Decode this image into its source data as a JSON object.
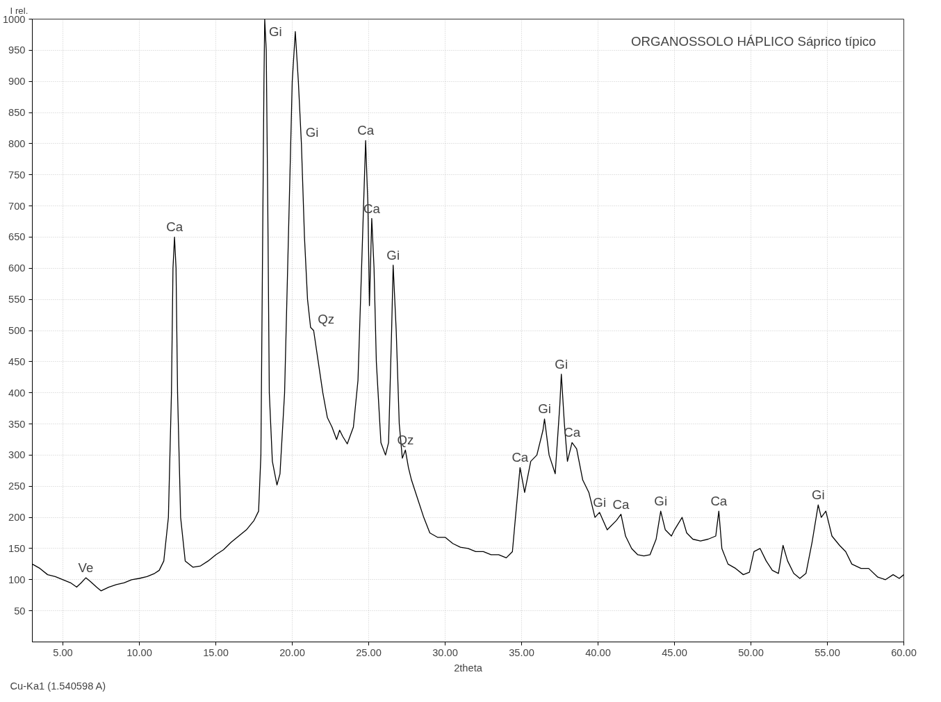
{
  "chart_data": {
    "type": "line",
    "title": "ORGANOSSOLO HÁPLICO Sáprico típico",
    "xlabel": "2theta",
    "ylabel": "I rel.",
    "annotations": [
      "Cu-Ka1 (1.540598 A)",
      {
        "text": "Ve",
        "x": 6.5,
        "y": 103
      },
      {
        "text": "Ca",
        "x": 12.3,
        "y": 650
      },
      {
        "text": "Gi",
        "x": 18.2,
        "y": 1000
      },
      {
        "text": "Gi",
        "x": 20.6,
        "y": 800
      },
      {
        "text": "Qz",
        "x": 21.4,
        "y": 500
      },
      {
        "text": "Ca",
        "x": 24.8,
        "y": 805
      },
      {
        "text": "Ca",
        "x": 25.2,
        "y": 680
      },
      {
        "text": "Gi",
        "x": 26.6,
        "y": 605
      },
      {
        "text": "Qz",
        "x": 27.4,
        "y": 308
      },
      {
        "text": "Ca",
        "x": 34.9,
        "y": 280
      },
      {
        "text": "Gi",
        "x": 36.5,
        "y": 358
      },
      {
        "text": "Gi",
        "x": 37.6,
        "y": 430
      },
      {
        "text": "Ca",
        "x": 38.3,
        "y": 320
      },
      {
        "text": "Gi",
        "x": 40.1,
        "y": 208
      },
      {
        "text": "Ca",
        "x": 41.5,
        "y": 205
      },
      {
        "text": "Gi",
        "x": 44.1,
        "y": 210
      },
      {
        "text": "Ca",
        "x": 47.9,
        "y": 210
      },
      {
        "text": "Gi",
        "x": 54.4,
        "y": 220
      }
    ],
    "xlim": [
      3,
      60
    ],
    "ylim": [
      0,
      1000
    ],
    "xticks": [
      {
        "value": 5,
        "label": "5.00"
      },
      {
        "value": 10,
        "label": "10.00"
      },
      {
        "value": 15,
        "label": "15.00"
      },
      {
        "value": 20,
        "label": "20.00"
      },
      {
        "value": 25,
        "label": "25.00"
      },
      {
        "value": 30,
        "label": "30.00"
      },
      {
        "value": 35,
        "label": "35.00"
      },
      {
        "value": 40,
        "label": "40.00"
      },
      {
        "value": 45,
        "label": "45.00"
      },
      {
        "value": 50,
        "label": "50.00"
      },
      {
        "value": 55,
        "label": "55.00"
      },
      {
        "value": 60,
        "label": "60.00"
      }
    ],
    "yticks": [
      50,
      100,
      150,
      200,
      250,
      300,
      350,
      400,
      450,
      500,
      550,
      600,
      650,
      700,
      750,
      800,
      850,
      900,
      950,
      1000
    ],
    "grid": true,
    "marker": "none",
    "line_style": "solid",
    "series": [
      {
        "color": "#000000",
        "x": [
          3.0,
          3.5,
          4.0,
          4.5,
          5.0,
          5.5,
          5.9,
          6.2,
          6.5,
          6.8,
          7.2,
          7.5,
          8.0,
          8.5,
          9.0,
          9.5,
          10.0,
          10.5,
          11.0,
          11.3,
          11.6,
          11.9,
          12.1,
          12.2,
          12.3,
          12.4,
          12.5,
          12.7,
          13.0,
          13.5,
          14.0,
          14.5,
          15.0,
          15.5,
          16.0,
          16.5,
          17.0,
          17.5,
          17.8,
          17.95,
          18.05,
          18.15,
          18.2,
          18.3,
          18.4,
          18.5,
          18.7,
          19.0,
          19.2,
          19.5,
          19.8,
          20.0,
          20.2,
          20.4,
          20.6,
          20.8,
          21.0,
          21.2,
          21.4,
          21.7,
          22.0,
          22.3,
          22.6,
          22.9,
          23.1,
          23.3,
          23.6,
          24.0,
          24.3,
          24.6,
          24.8,
          24.95,
          25.05,
          25.2,
          25.35,
          25.5,
          25.8,
          26.1,
          26.3,
          26.5,
          26.6,
          26.8,
          27.0,
          27.2,
          27.4,
          27.6,
          27.8,
          28.2,
          28.6,
          29.0,
          29.5,
          30.0,
          30.5,
          31.0,
          31.5,
          32.0,
          32.5,
          33.0,
          33.5,
          34.0,
          34.4,
          34.6,
          34.9,
          35.2,
          35.6,
          36.0,
          36.4,
          36.5,
          36.8,
          37.2,
          37.5,
          37.6,
          37.8,
          38.0,
          38.3,
          38.6,
          39.0,
          39.4,
          39.8,
          40.1,
          40.6,
          41.2,
          41.5,
          41.8,
          42.2,
          42.6,
          43.0,
          43.4,
          43.8,
          44.1,
          44.4,
          44.8,
          45.0,
          45.5,
          45.8,
          46.2,
          46.7,
          47.2,
          47.7,
          47.9,
          48.1,
          48.5,
          49.0,
          49.5,
          49.9,
          50.2,
          50.6,
          51.0,
          51.4,
          51.8,
          52.1,
          52.4,
          52.8,
          53.2,
          53.6,
          54.0,
          54.4,
          54.6,
          54.9,
          55.3,
          55.8,
          56.2,
          56.6,
          57.2,
          57.7,
          58.3,
          58.8,
          59.3,
          59.7,
          60.0
        ],
        "values": [
          125,
          118,
          108,
          105,
          100,
          95,
          88,
          95,
          103,
          97,
          88,
          82,
          88,
          92,
          95,
          100,
          102,
          105,
          110,
          115,
          130,
          200,
          400,
          600,
          650,
          600,
          400,
          200,
          130,
          120,
          122,
          130,
          140,
          148,
          160,
          170,
          180,
          195,
          210,
          300,
          600,
          900,
          1000,
          950,
          700,
          400,
          290,
          252,
          270,
          400,
          700,
          900,
          980,
          900,
          800,
          650,
          550,
          505,
          500,
          450,
          400,
          360,
          345,
          325,
          340,
          330,
          318,
          345,
          420,
          650,
          805,
          700,
          540,
          680,
          600,
          450,
          320,
          300,
          320,
          500,
          605,
          500,
          350,
          295,
          308,
          280,
          260,
          230,
          200,
          175,
          168,
          168,
          158,
          152,
          150,
          145,
          145,
          140,
          140,
          135,
          145,
          200,
          280,
          240,
          290,
          300,
          340,
          358,
          300,
          270,
          380,
          430,
          350,
          290,
          320,
          310,
          260,
          240,
          200,
          208,
          180,
          195,
          205,
          170,
          150,
          140,
          138,
          140,
          165,
          210,
          180,
          170,
          180,
          200,
          175,
          165,
          162,
          165,
          170,
          210,
          150,
          125,
          118,
          108,
          112,
          145,
          150,
          130,
          115,
          110,
          155,
          130,
          110,
          102,
          110,
          160,
          220,
          200,
          210,
          170,
          155,
          145,
          125,
          118,
          118,
          104,
          100,
          108,
          102,
          108
        ]
      }
    ]
  }
}
